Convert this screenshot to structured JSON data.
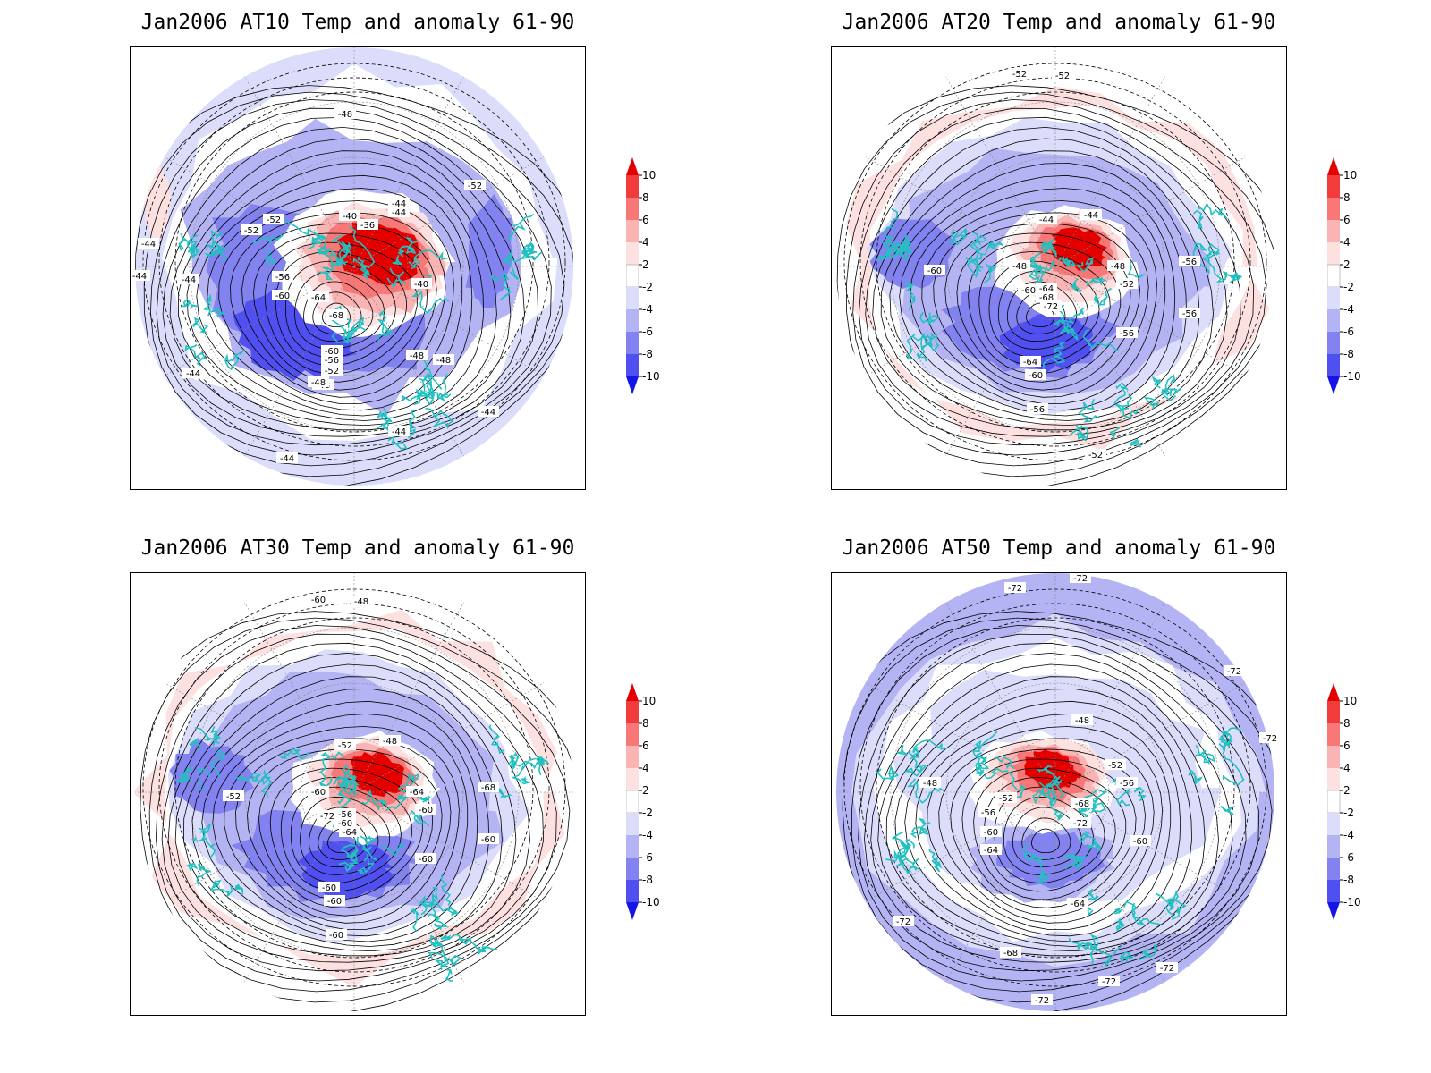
{
  "panels": [
    {
      "title": "Jan2006 AT10 Temp and anomaly 61-90",
      "contour_labels": [
        "-48",
        "-52",
        "-52",
        "-44",
        "-52",
        "-44",
        "-44",
        "-40",
        "-36",
        "-44",
        "-56",
        "-44",
        "-40",
        "-60",
        "-64",
        "-68",
        "-60",
        "-56",
        "-52",
        "-48",
        "-48",
        "-48",
        "-48",
        "-44",
        "-44",
        "-44",
        "-44"
      ],
      "anomaly_pattern": "warm-pole-strong"
    },
    {
      "title": "Jan2006 AT20 Temp and anomaly 61-90",
      "contour_labels": [
        "-52",
        "-52",
        "-44",
        "-44",
        "-60",
        "-48",
        "-48",
        "-56",
        "-64",
        "-60",
        "-52",
        "-68",
        "-72",
        "-56",
        "-56",
        "-64",
        "-60",
        "-56",
        "-52"
      ],
      "anomaly_pattern": "warm-pole"
    },
    {
      "title": "Jan2006 AT30 Temp and anomaly 61-90",
      "contour_labels": [
        "-60",
        "-48",
        "-52",
        "-48",
        "-52",
        "-60",
        "-64",
        "-68",
        "-56",
        "-72",
        "-60",
        "-60",
        "-64",
        "-60",
        "-60",
        "-60",
        "-60",
        "-60"
      ],
      "anomaly_pattern": "warm-pole"
    },
    {
      "title": "Jan2006 AT50 Temp and anomaly 61-90",
      "contour_labels": [
        "-72",
        "-72",
        "-72",
        "-48",
        "-72",
        "-52",
        "-56",
        "-48",
        "-52",
        "-68",
        "-56",
        "-72",
        "-60",
        "-60",
        "-64",
        "-64",
        "-72",
        "-68",
        "-72",
        "-72",
        "-72"
      ],
      "anomaly_pattern": "warm-pole-cold-ring"
    }
  ],
  "colorbar": {
    "ticks": [
      "10",
      "8",
      "6",
      "4",
      "2",
      "-2",
      "-4",
      "-6",
      "-8",
      "-10"
    ],
    "colors": [
      "#e50000",
      "#f23c3c",
      "#f87878",
      "#fbb4b4",
      "#fde1e1",
      "#ffffff",
      "#dcdcfb",
      "#b4b4f5",
      "#8282f0",
      "#5050f0",
      "#1414e6"
    ]
  },
  "colors": {
    "coastline": "#22c1c1",
    "contour": "#000000"
  }
}
